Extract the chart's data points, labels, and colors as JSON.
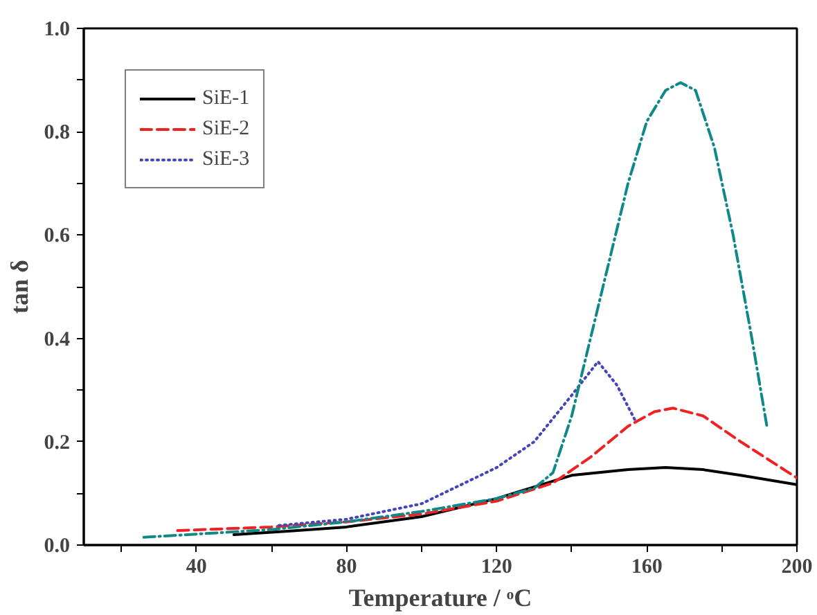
{
  "chart_data": {
    "type": "line",
    "xlabel": "Temperature / ᵒC",
    "ylabel": "tan δ",
    "xlim": [
      10,
      200
    ],
    "ylim": [
      0,
      1.0
    ],
    "xticks": [
      {
        "value": 20,
        "label": null
      },
      40,
      {
        "value": 60,
        "label": null
      },
      80,
      {
        "value": 100,
        "label": null
      },
      120,
      {
        "value": 140,
        "label": null
      },
      160,
      {
        "value": 180,
        "label": null
      },
      200
    ],
    "yticks": [
      {
        "value": 0,
        "label": "0.0"
      },
      {
        "value": 0.1,
        "label": null
      },
      {
        "value": 0.2,
        "label": "0.2"
      },
      {
        "value": 0.3,
        "label": null
      },
      {
        "value": 0.4,
        "label": "0.4"
      },
      {
        "value": 0.5,
        "label": null
      },
      {
        "value": 0.6,
        "label": "0.6"
      },
      {
        "value": 0.7,
        "label": null
      },
      {
        "value": 0.8,
        "label": "0.8"
      },
      {
        "value": 0.9,
        "label": null
      },
      {
        "value": 1.0,
        "label": "1.0"
      }
    ],
    "grid": false,
    "legend": "top left",
    "marker": "none",
    "series": [
      {
        "name": "SiE-1",
        "color": "#000000",
        "line_style": "solid",
        "x": [
          50,
          65,
          80,
          100,
          120,
          140,
          155,
          165,
          175,
          185,
          200
        ],
        "values": [
          0.02,
          0.027,
          0.035,
          0.055,
          0.09,
          0.135,
          0.146,
          0.15,
          0.146,
          0.135,
          0.117
        ]
      },
      {
        "name": "SiE-2",
        "color": "#ee2222",
        "line_style": "dashed",
        "x": [
          35,
          60,
          80,
          100,
          120,
          135,
          145,
          155,
          162,
          167,
          175,
          185,
          200
        ],
        "values": [
          0.028,
          0.035,
          0.045,
          0.06,
          0.085,
          0.12,
          0.17,
          0.23,
          0.258,
          0.265,
          0.25,
          0.2,
          0.13
        ]
      },
      {
        "name": "SiE-3",
        "color": "#4444bb",
        "line_style": "dotted",
        "x": [
          62,
          80,
          100,
          120,
          130,
          140,
          147,
          152,
          157
        ],
        "values": [
          0.038,
          0.05,
          0.08,
          0.15,
          0.2,
          0.29,
          0.355,
          0.31,
          0.24
        ]
      },
      {
        "color": "#118888",
        "line_style": "dashdot",
        "x": [
          26,
          60,
          80,
          100,
          120,
          130,
          135,
          140,
          145,
          150,
          155,
          160,
          165,
          169,
          173,
          178,
          183,
          188,
          192
        ],
        "values": [
          0.015,
          0.03,
          0.045,
          0.065,
          0.09,
          0.11,
          0.14,
          0.25,
          0.4,
          0.55,
          0.7,
          0.82,
          0.88,
          0.895,
          0.88,
          0.77,
          0.6,
          0.4,
          0.23
        ]
      }
    ]
  }
}
